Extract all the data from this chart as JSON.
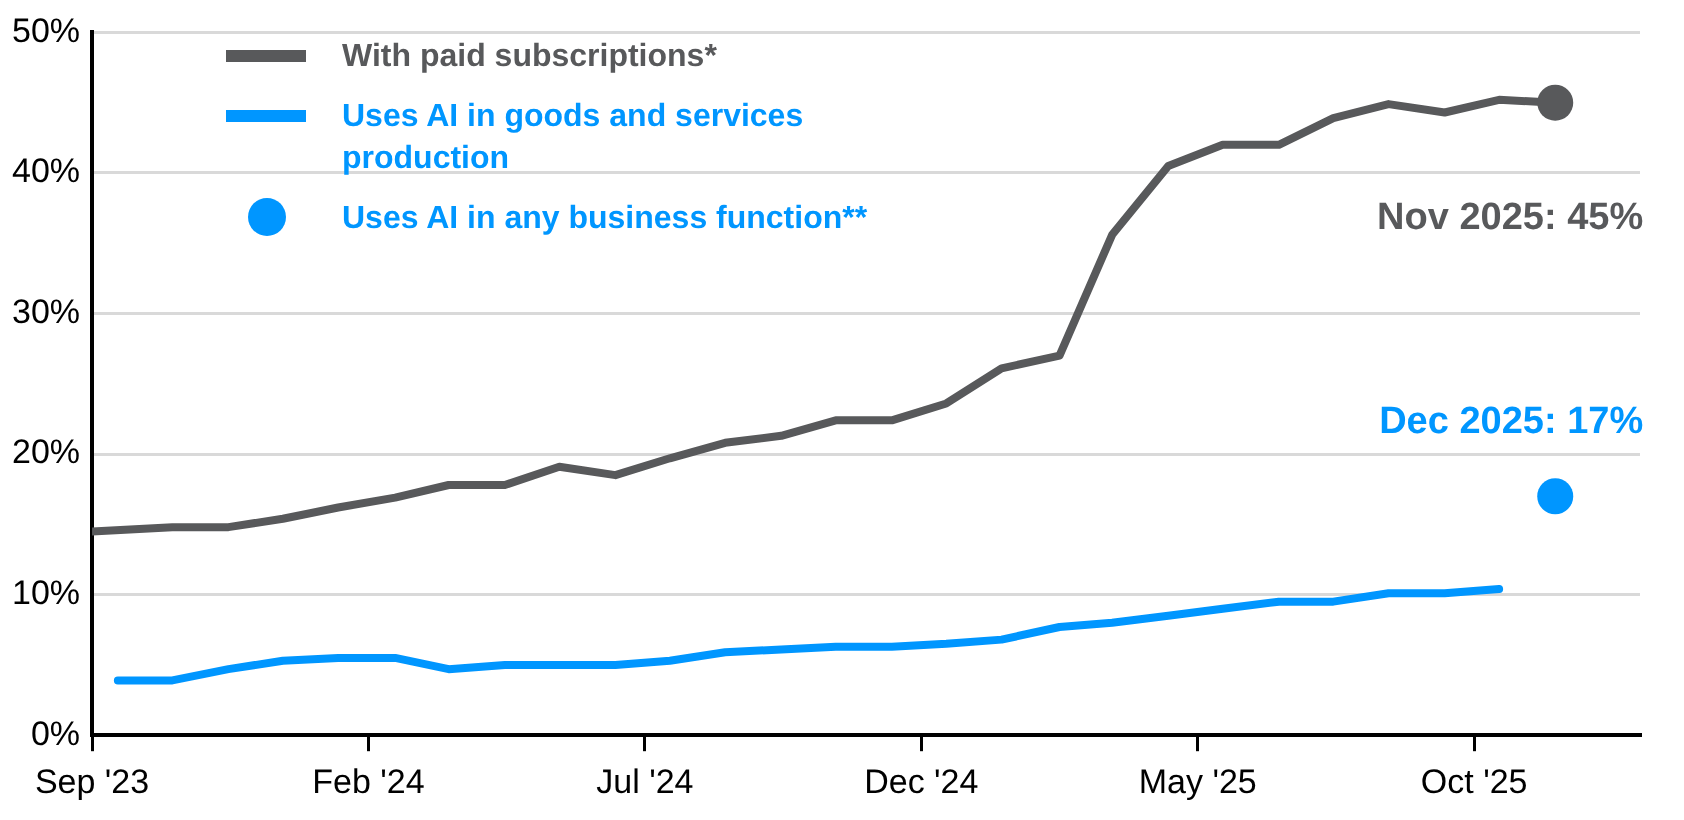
{
  "chart_data": {
    "type": "line",
    "xlim": [
      "2023-09-01",
      "2026-01-01"
    ],
    "xticks": [
      {
        "value": "2023-09-01",
        "label": "Sep '23"
      },
      {
        "value": "2024-02-01",
        "label": "Feb '24"
      },
      {
        "value": "2024-07-01",
        "label": "Jul '24"
      },
      {
        "value": "2024-12-01",
        "label": "Dec '24"
      },
      {
        "value": "2025-05-01",
        "label": "May '25"
      },
      {
        "value": "2025-10-01",
        "label": "Oct '25"
      }
    ],
    "ylim": [
      0,
      50
    ],
    "yticks": [
      {
        "value": 0,
        "label": "0%"
      },
      {
        "value": 10,
        "label": "10%"
      },
      {
        "value": 20,
        "label": "20%"
      },
      {
        "value": 30,
        "label": "30%"
      },
      {
        "value": 40,
        "label": "40%"
      },
      {
        "value": 50,
        "label": "50%"
      }
    ],
    "grid": "y",
    "legend": "top left",
    "series": [
      {
        "name": "With paid subscriptions*",
        "color": "#58595b",
        "type": "line",
        "x": [
          "2023-09-01",
          "2023-10-15",
          "2023-11-15",
          "2023-12-15",
          "2024-01-15",
          "2024-02-15",
          "2024-03-15",
          "2024-04-15",
          "2024-05-15",
          "2024-06-15",
          "2024-07-15",
          "2024-08-15",
          "2024-09-15",
          "2024-10-15",
          "2024-11-15",
          "2024-12-15",
          "2025-01-15",
          "2025-02-15",
          "2025-03-15",
          "2025-04-15",
          "2025-05-15",
          "2025-06-15",
          "2025-07-15",
          "2025-08-15",
          "2025-09-15",
          "2025-10-15",
          "2025-11-15"
        ],
        "values": [
          14.5,
          14.8,
          14.8,
          15.4,
          16.2,
          16.9,
          17.8,
          17.8,
          19.1,
          18.5,
          19.7,
          20.8,
          21.3,
          22.4,
          22.4,
          23.6,
          26.1,
          27.0,
          35.6,
          40.5,
          42.0,
          42.0,
          43.9,
          44.9,
          44.3,
          45.2,
          45
        ]
      },
      {
        "name": "Uses AI in goods and services production",
        "color": "#0096ff",
        "type": "line",
        "x": [
          "2023-09-15",
          "2023-10-15",
          "2023-11-15",
          "2023-12-15",
          "2024-01-15",
          "2024-02-15",
          "2024-03-15",
          "2024-04-15",
          "2024-05-15",
          "2024-06-15",
          "2024-07-15",
          "2024-08-15",
          "2024-09-15",
          "2024-10-15",
          "2024-11-15",
          "2024-12-15",
          "2025-01-15",
          "2025-02-15",
          "2025-03-15",
          "2025-04-15",
          "2025-05-15",
          "2025-06-15",
          "2025-07-15",
          "2025-08-15",
          "2025-09-15",
          "2025-10-15"
        ],
        "values": [
          3.9,
          3.9,
          4.7,
          5.3,
          5.5,
          5.5,
          4.7,
          5.0,
          5.0,
          5.0,
          5.3,
          5.9,
          6.1,
          6.3,
          6.3,
          6.5,
          6.8,
          7.7,
          8.0,
          8.5,
          9.0,
          9.5,
          9.5,
          10.1,
          10.1,
          10.4
        ]
      },
      {
        "name": "Uses AI in any business function**",
        "color": "#0096ff",
        "type": "scatter",
        "marker": "circle",
        "x": [
          "2025-11-15"
        ],
        "values": [
          17
        ]
      }
    ],
    "annotations": [
      {
        "text": "Nov 2025: 45%",
        "x": "2025-11-15",
        "y": 45
      },
      {
        "text": "Dec 2025: 17%",
        "x": "2025-11-15",
        "y": 17
      }
    ]
  }
}
